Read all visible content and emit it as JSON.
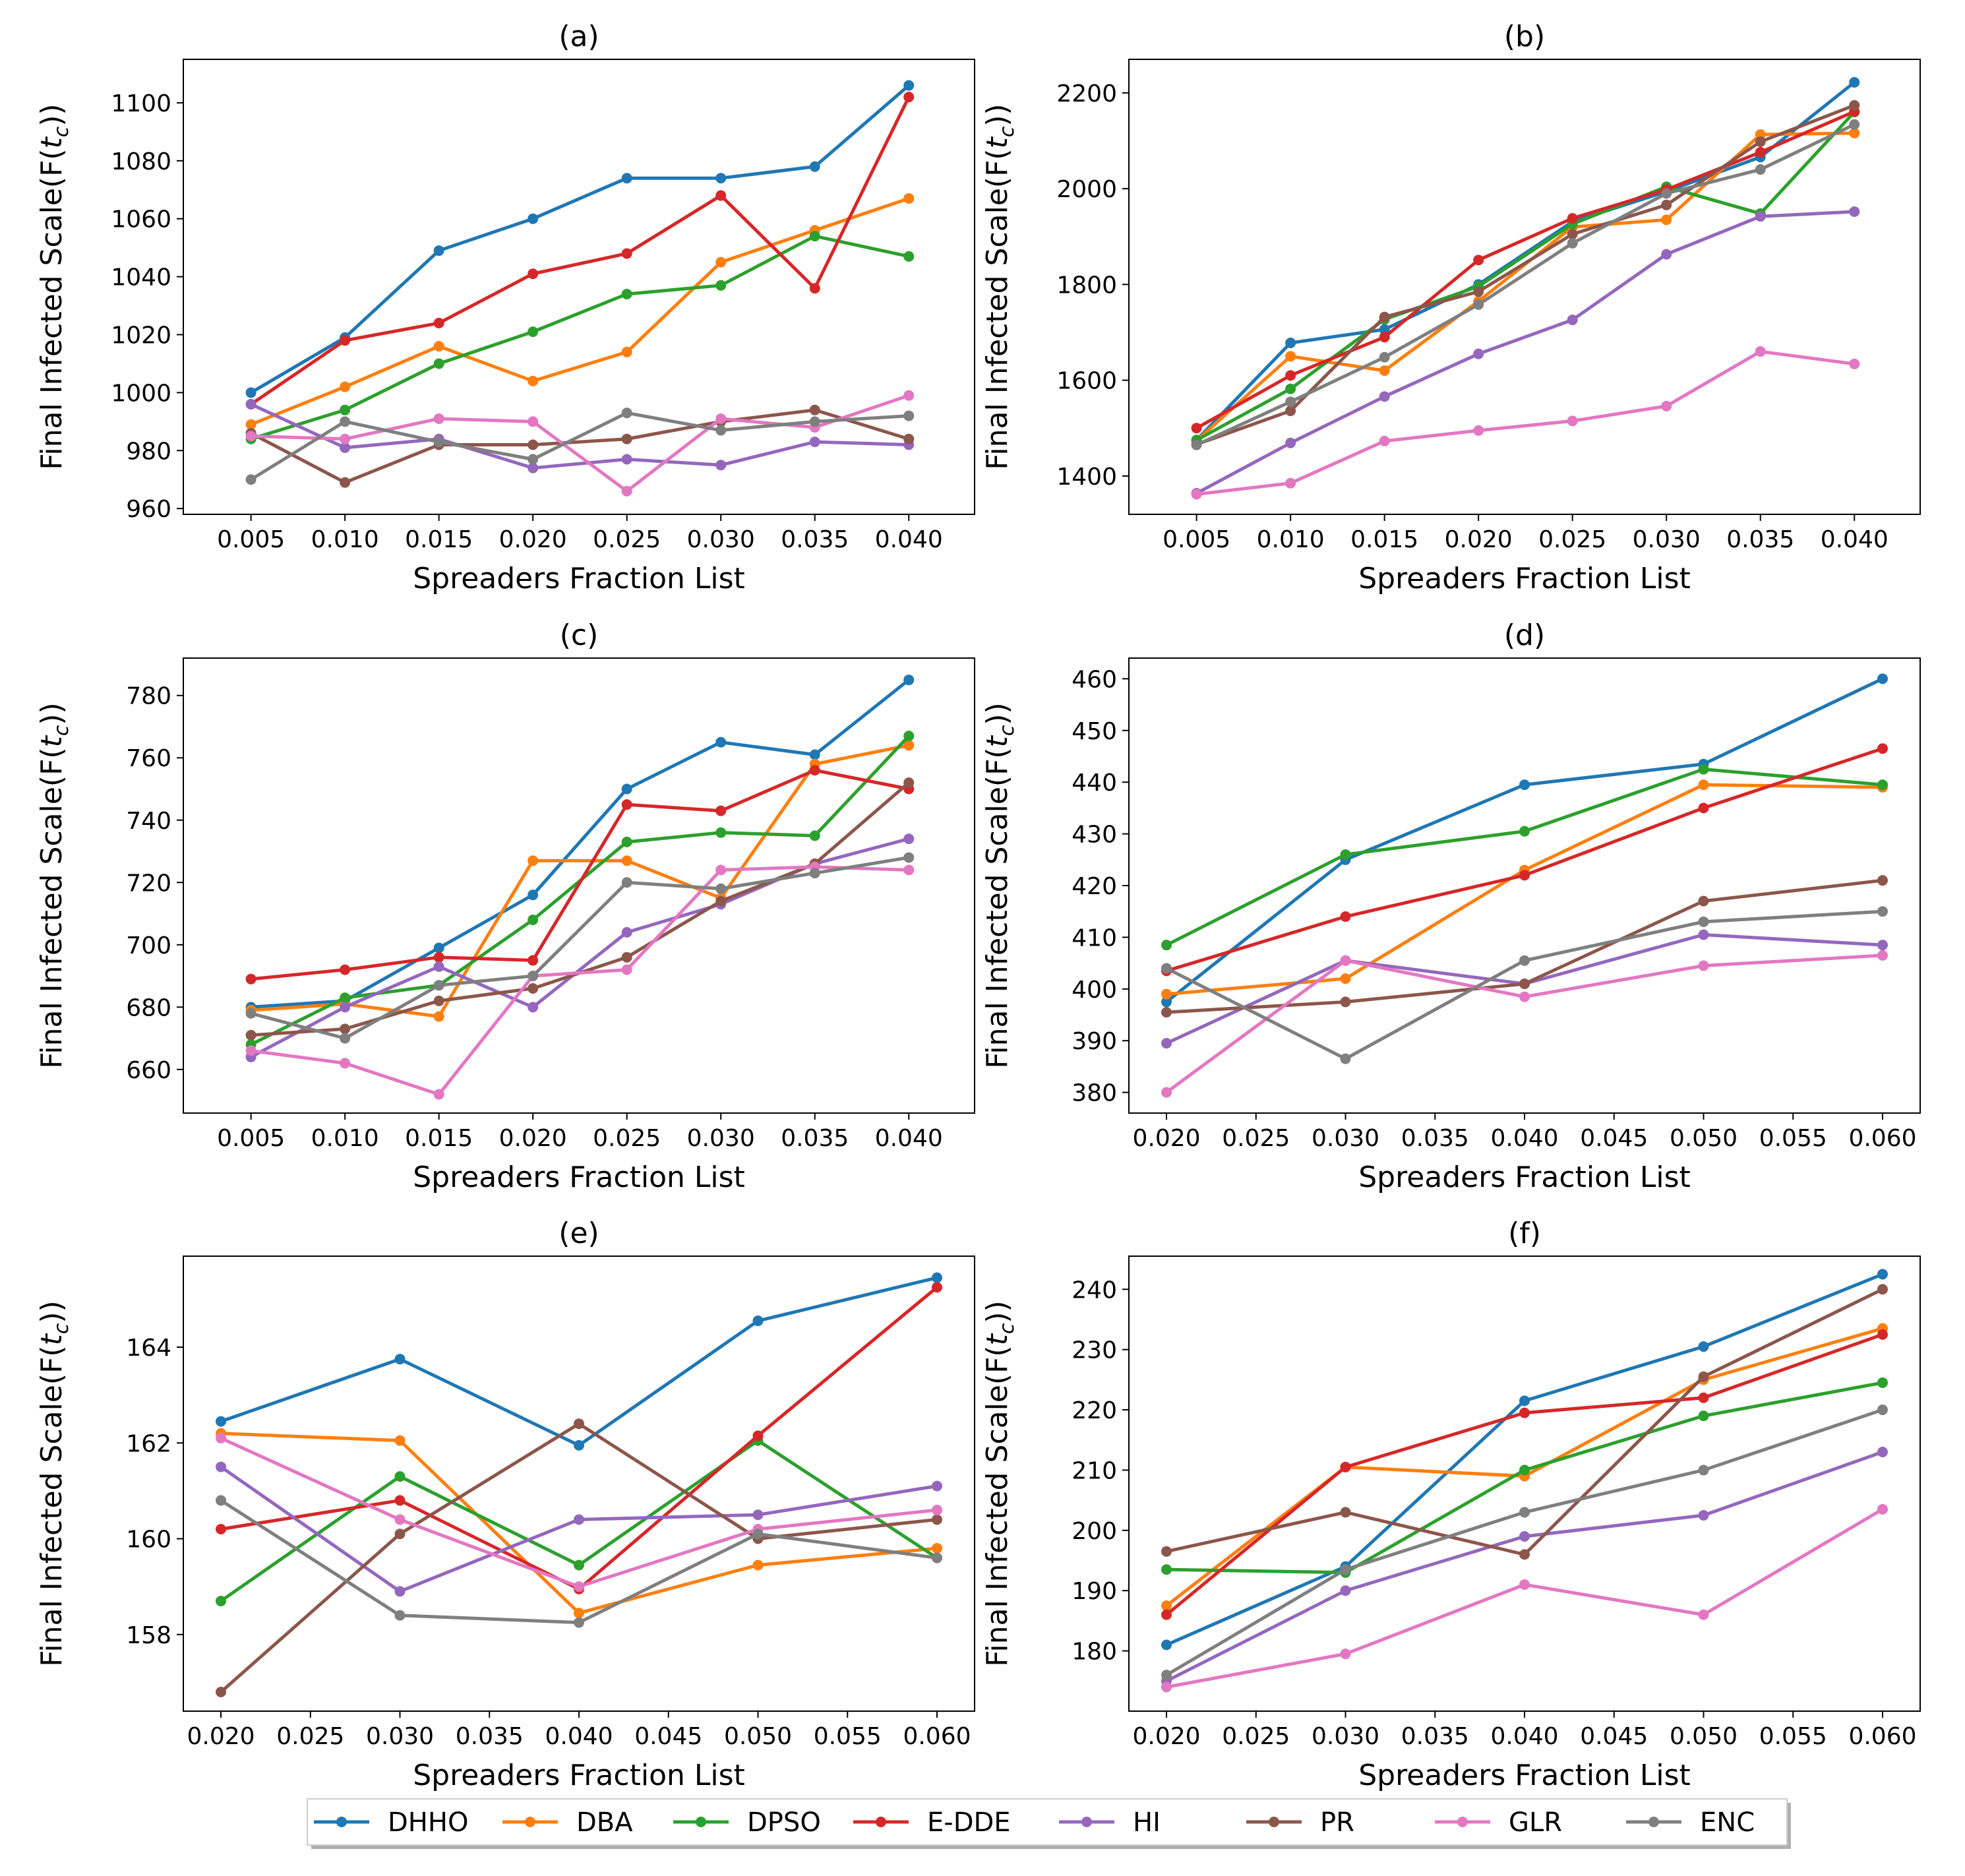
{
  "figure": {
    "series_names": [
      "DHHO",
      "DBA",
      "DPSO",
      "E-DDE",
      "HI",
      "PR",
      "GLR",
      "ENC"
    ],
    "series_colors": {
      "DHHO": "#1f77b4",
      "DBA": "#ff7f0e",
      "DPSO": "#2ca02c",
      "E-DDE": "#d62728",
      "HI": "#9467bd",
      "PR": "#8c564b",
      "GLR": "#e377c2",
      "ENC": "#7f7f7f"
    },
    "legend_placement": "bottom-center"
  },
  "chart_data": [
    {
      "panel": "a",
      "type": "line",
      "title": "(a)",
      "xlabel": "Spreaders Fraction List",
      "ylabel": "Final Infected Scale(F(t_c))",
      "x": [
        0.005,
        0.01,
        0.015,
        0.02,
        0.025,
        0.03,
        0.035,
        0.04
      ],
      "xticks": [
        "0.005",
        "0.010",
        "0.015",
        "0.020",
        "0.025",
        "0.030",
        "0.035",
        "0.040"
      ],
      "xlim": [
        0.0014,
        0.0435
      ],
      "yticks": [
        "960",
        "980",
        "1000",
        "1020",
        "1040",
        "1060",
        "1080",
        "1100"
      ],
      "ylim": [
        958,
        1115
      ],
      "series": [
        {
          "name": "DHHO",
          "values": [
            1000,
            1019,
            1049,
            1060,
            1074,
            1074,
            1078,
            1106
          ]
        },
        {
          "name": "DBA",
          "values": [
            989,
            1002,
            1016,
            1004,
            1014,
            1045,
            1056,
            1067
          ]
        },
        {
          "name": "DPSO",
          "values": [
            984,
            994,
            1010,
            1021,
            1034,
            1037,
            1054,
            1047
          ]
        },
        {
          "name": "E-DDE",
          "values": [
            996,
            1018,
            1024,
            1041,
            1048,
            1068,
            1036,
            1102
          ]
        },
        {
          "name": "HI",
          "values": [
            996,
            981,
            984,
            974,
            977,
            975,
            983,
            982
          ]
        },
        {
          "name": "PR",
          "values": [
            986,
            969,
            982,
            982,
            984,
            990,
            994,
            984
          ]
        },
        {
          "name": "GLR",
          "values": [
            985,
            984,
            991,
            990,
            966,
            991,
            988,
            999
          ]
        },
        {
          "name": "ENC",
          "values": [
            970,
            990,
            983,
            977,
            993,
            987,
            990,
            992
          ]
        }
      ]
    },
    {
      "panel": "b",
      "type": "line",
      "title": "(b)",
      "xlabel": "Spreaders Fraction List",
      "ylabel": "Final Infected Scale(F(t_c))",
      "x": [
        0.005,
        0.01,
        0.015,
        0.02,
        0.025,
        0.03,
        0.035,
        0.04
      ],
      "xticks": [
        "0.005",
        "0.010",
        "0.015",
        "0.020",
        "0.025",
        "0.030",
        "0.035",
        "0.040"
      ],
      "xlim": [
        0.0014,
        0.0435
      ],
      "yticks": [
        "1400",
        "1600",
        "1800",
        "2000",
        "2200"
      ],
      "ylim": [
        1320,
        2270
      ],
      "series": [
        {
          "name": "DHHO",
          "values": [
            1475,
            1678,
            1706,
            1800,
            1931,
            1994,
            2066,
            2222
          ]
        },
        {
          "name": "DBA",
          "values": [
            1474,
            1650,
            1620,
            1765,
            1920,
            1935,
            2113,
            2116
          ]
        },
        {
          "name": "DPSO",
          "values": [
            1475,
            1582,
            1727,
            1796,
            1926,
            2004,
            1948,
            2160
          ]
        },
        {
          "name": "E-DDE",
          "values": [
            1500,
            1610,
            1690,
            1851,
            1938,
            1998,
            2076,
            2161
          ]
        },
        {
          "name": "HI",
          "values": [
            1364,
            1469,
            1566,
            1655,
            1726,
            1863,
            1942,
            1952
          ]
        },
        {
          "name": "PR",
          "values": [
            1466,
            1536,
            1732,
            1785,
            1905,
            1966,
            2098,
            2174
          ]
        },
        {
          "name": "GLR",
          "values": [
            1362,
            1385,
            1473,
            1495,
            1515,
            1546,
            1660,
            1634
          ]
        },
        {
          "name": "ENC",
          "values": [
            1465,
            1555,
            1648,
            1758,
            1886,
            1990,
            2040,
            2134
          ]
        }
      ]
    },
    {
      "panel": "c",
      "type": "line",
      "title": "(c)",
      "xlabel": "Spreaders Fraction List",
      "ylabel": "Final Infected Scale(F(t_c))",
      "x": [
        0.005,
        0.01,
        0.015,
        0.02,
        0.025,
        0.03,
        0.035,
        0.04
      ],
      "xticks": [
        "0.005",
        "0.010",
        "0.015",
        "0.020",
        "0.025",
        "0.030",
        "0.035",
        "0.040"
      ],
      "xlim": [
        0.0014,
        0.0435
      ],
      "yticks": [
        "660",
        "680",
        "700",
        "720",
        "740",
        "760",
        "780"
      ],
      "ylim": [
        646,
        792
      ],
      "series": [
        {
          "name": "DHHO",
          "values": [
            680,
            682,
            699,
            716,
            750,
            765,
            761,
            785
          ]
        },
        {
          "name": "DBA",
          "values": [
            679,
            681,
            677,
            727,
            727,
            715,
            758,
            764
          ]
        },
        {
          "name": "DPSO",
          "values": [
            668,
            683,
            687,
            708,
            733,
            736,
            735,
            767
          ]
        },
        {
          "name": "E-DDE",
          "values": [
            689,
            692,
            696,
            695,
            745,
            743,
            756,
            750
          ]
        },
        {
          "name": "HI",
          "values": [
            664,
            680,
            693,
            680,
            704,
            713,
            726,
            734
          ]
        },
        {
          "name": "PR",
          "values": [
            671,
            673,
            682,
            686,
            696,
            714,
            726,
            752
          ]
        },
        {
          "name": "GLR",
          "values": [
            666,
            662,
            652,
            690,
            692,
            724,
            725,
            724
          ]
        },
        {
          "name": "ENC",
          "values": [
            678,
            670,
            687,
            690,
            720,
            718,
            723,
            728
          ]
        }
      ]
    },
    {
      "panel": "d",
      "type": "line",
      "title": "(d)",
      "xlabel": "Spreaders Fraction List",
      "ylabel": "Final Infected Scale(F(t_c))",
      "x": [
        0.02,
        0.03,
        0.04,
        0.05,
        0.06
      ],
      "xticks": [
        "0.020",
        "0.025",
        "0.030",
        "0.035",
        "0.040",
        "0.045",
        "0.050",
        "0.055",
        "0.060"
      ],
      "xlim": [
        0.0179,
        0.0621
      ],
      "yticks": [
        "380",
        "390",
        "400",
        "410",
        "420",
        "430",
        "440",
        "450",
        "460"
      ],
      "ylim": [
        376,
        464
      ],
      "series": [
        {
          "name": "DHHO",
          "values": [
            397.5,
            425,
            439.5,
            443.5,
            460
          ]
        },
        {
          "name": "DBA",
          "values": [
            399,
            402,
            423,
            439.5,
            439
          ]
        },
        {
          "name": "DPSO",
          "values": [
            408.5,
            426,
            430.5,
            442.5,
            439.5
          ]
        },
        {
          "name": "E-DDE",
          "values": [
            403.5,
            414,
            422,
            435,
            446.5
          ]
        },
        {
          "name": "HI",
          "values": [
            389.5,
            405.5,
            401,
            410.5,
            408.5
          ]
        },
        {
          "name": "PR",
          "values": [
            395.5,
            397.5,
            401,
            417,
            421
          ]
        },
        {
          "name": "GLR",
          "values": [
            380,
            405.5,
            398.5,
            404.5,
            406.5
          ]
        },
        {
          "name": "ENC",
          "values": [
            404,
            386.5,
            405.5,
            413,
            415
          ]
        }
      ]
    },
    {
      "panel": "e",
      "type": "line",
      "title": "(e)",
      "xlabel": "Spreaders Fraction List",
      "ylabel": "Final Infected Scale(F(t_c))",
      "x": [
        0.02,
        0.03,
        0.04,
        0.05,
        0.06
      ],
      "xticks": [
        "0.020",
        "0.025",
        "0.030",
        "0.035",
        "0.040",
        "0.045",
        "0.050",
        "0.055",
        "0.060"
      ],
      "xlim": [
        0.0179,
        0.0621
      ],
      "yticks": [
        "158",
        "160",
        "162",
        "164"
      ],
      "ylim": [
        156.4,
        165.9
      ],
      "series": [
        {
          "name": "DHHO",
          "values": [
            162.45,
            163.75,
            161.95,
            164.55,
            165.45
          ]
        },
        {
          "name": "DBA",
          "values": [
            162.2,
            162.05,
            158.45,
            159.45,
            159.8
          ]
        },
        {
          "name": "DPSO",
          "values": [
            158.7,
            161.3,
            159.45,
            162.05,
            159.6
          ]
        },
        {
          "name": "E-DDE",
          "values": [
            160.2,
            160.8,
            158.95,
            162.15,
            165.25
          ]
        },
        {
          "name": "HI",
          "values": [
            161.5,
            158.9,
            160.4,
            160.5,
            161.1
          ]
        },
        {
          "name": "PR",
          "values": [
            156.8,
            160.1,
            162.4,
            160.0,
            160.4
          ]
        },
        {
          "name": "GLR",
          "values": [
            162.1,
            160.4,
            159.0,
            160.2,
            160.6
          ]
        },
        {
          "name": "ENC",
          "values": [
            160.8,
            158.4,
            158.25,
            160.1,
            159.6
          ]
        }
      ]
    },
    {
      "panel": "f",
      "type": "line",
      "title": "(f)",
      "xlabel": "Spreaders Fraction List",
      "ylabel": "Final Infected Scale(F(t_c))",
      "x": [
        0.02,
        0.03,
        0.04,
        0.05,
        0.06
      ],
      "xticks": [
        "0.020",
        "0.025",
        "0.030",
        "0.035",
        "0.040",
        "0.045",
        "0.050",
        "0.055",
        "0.060"
      ],
      "xlim": [
        0.0179,
        0.0621
      ],
      "yticks": [
        "180",
        "190",
        "200",
        "210",
        "220",
        "230",
        "240"
      ],
      "ylim": [
        170,
        245.5
      ],
      "series": [
        {
          "name": "DHHO",
          "values": [
            181,
            194,
            221.5,
            230.5,
            242.5
          ]
        },
        {
          "name": "DBA",
          "values": [
            187.5,
            210.5,
            209,
            225,
            233.5
          ]
        },
        {
          "name": "DPSO",
          "values": [
            193.5,
            193,
            210,
            219,
            224.5
          ]
        },
        {
          "name": "E-DDE",
          "values": [
            186,
            210.5,
            219.5,
            222,
            232.5
          ]
        },
        {
          "name": "HI",
          "values": [
            175,
            190,
            199,
            202.5,
            213
          ]
        },
        {
          "name": "PR",
          "values": [
            196.5,
            203,
            196,
            225.5,
            240
          ]
        },
        {
          "name": "GLR",
          "values": [
            174,
            179.5,
            191,
            186,
            203.5
          ]
        },
        {
          "name": "ENC",
          "values": [
            176,
            193.5,
            203,
            210,
            220
          ]
        }
      ]
    }
  ]
}
